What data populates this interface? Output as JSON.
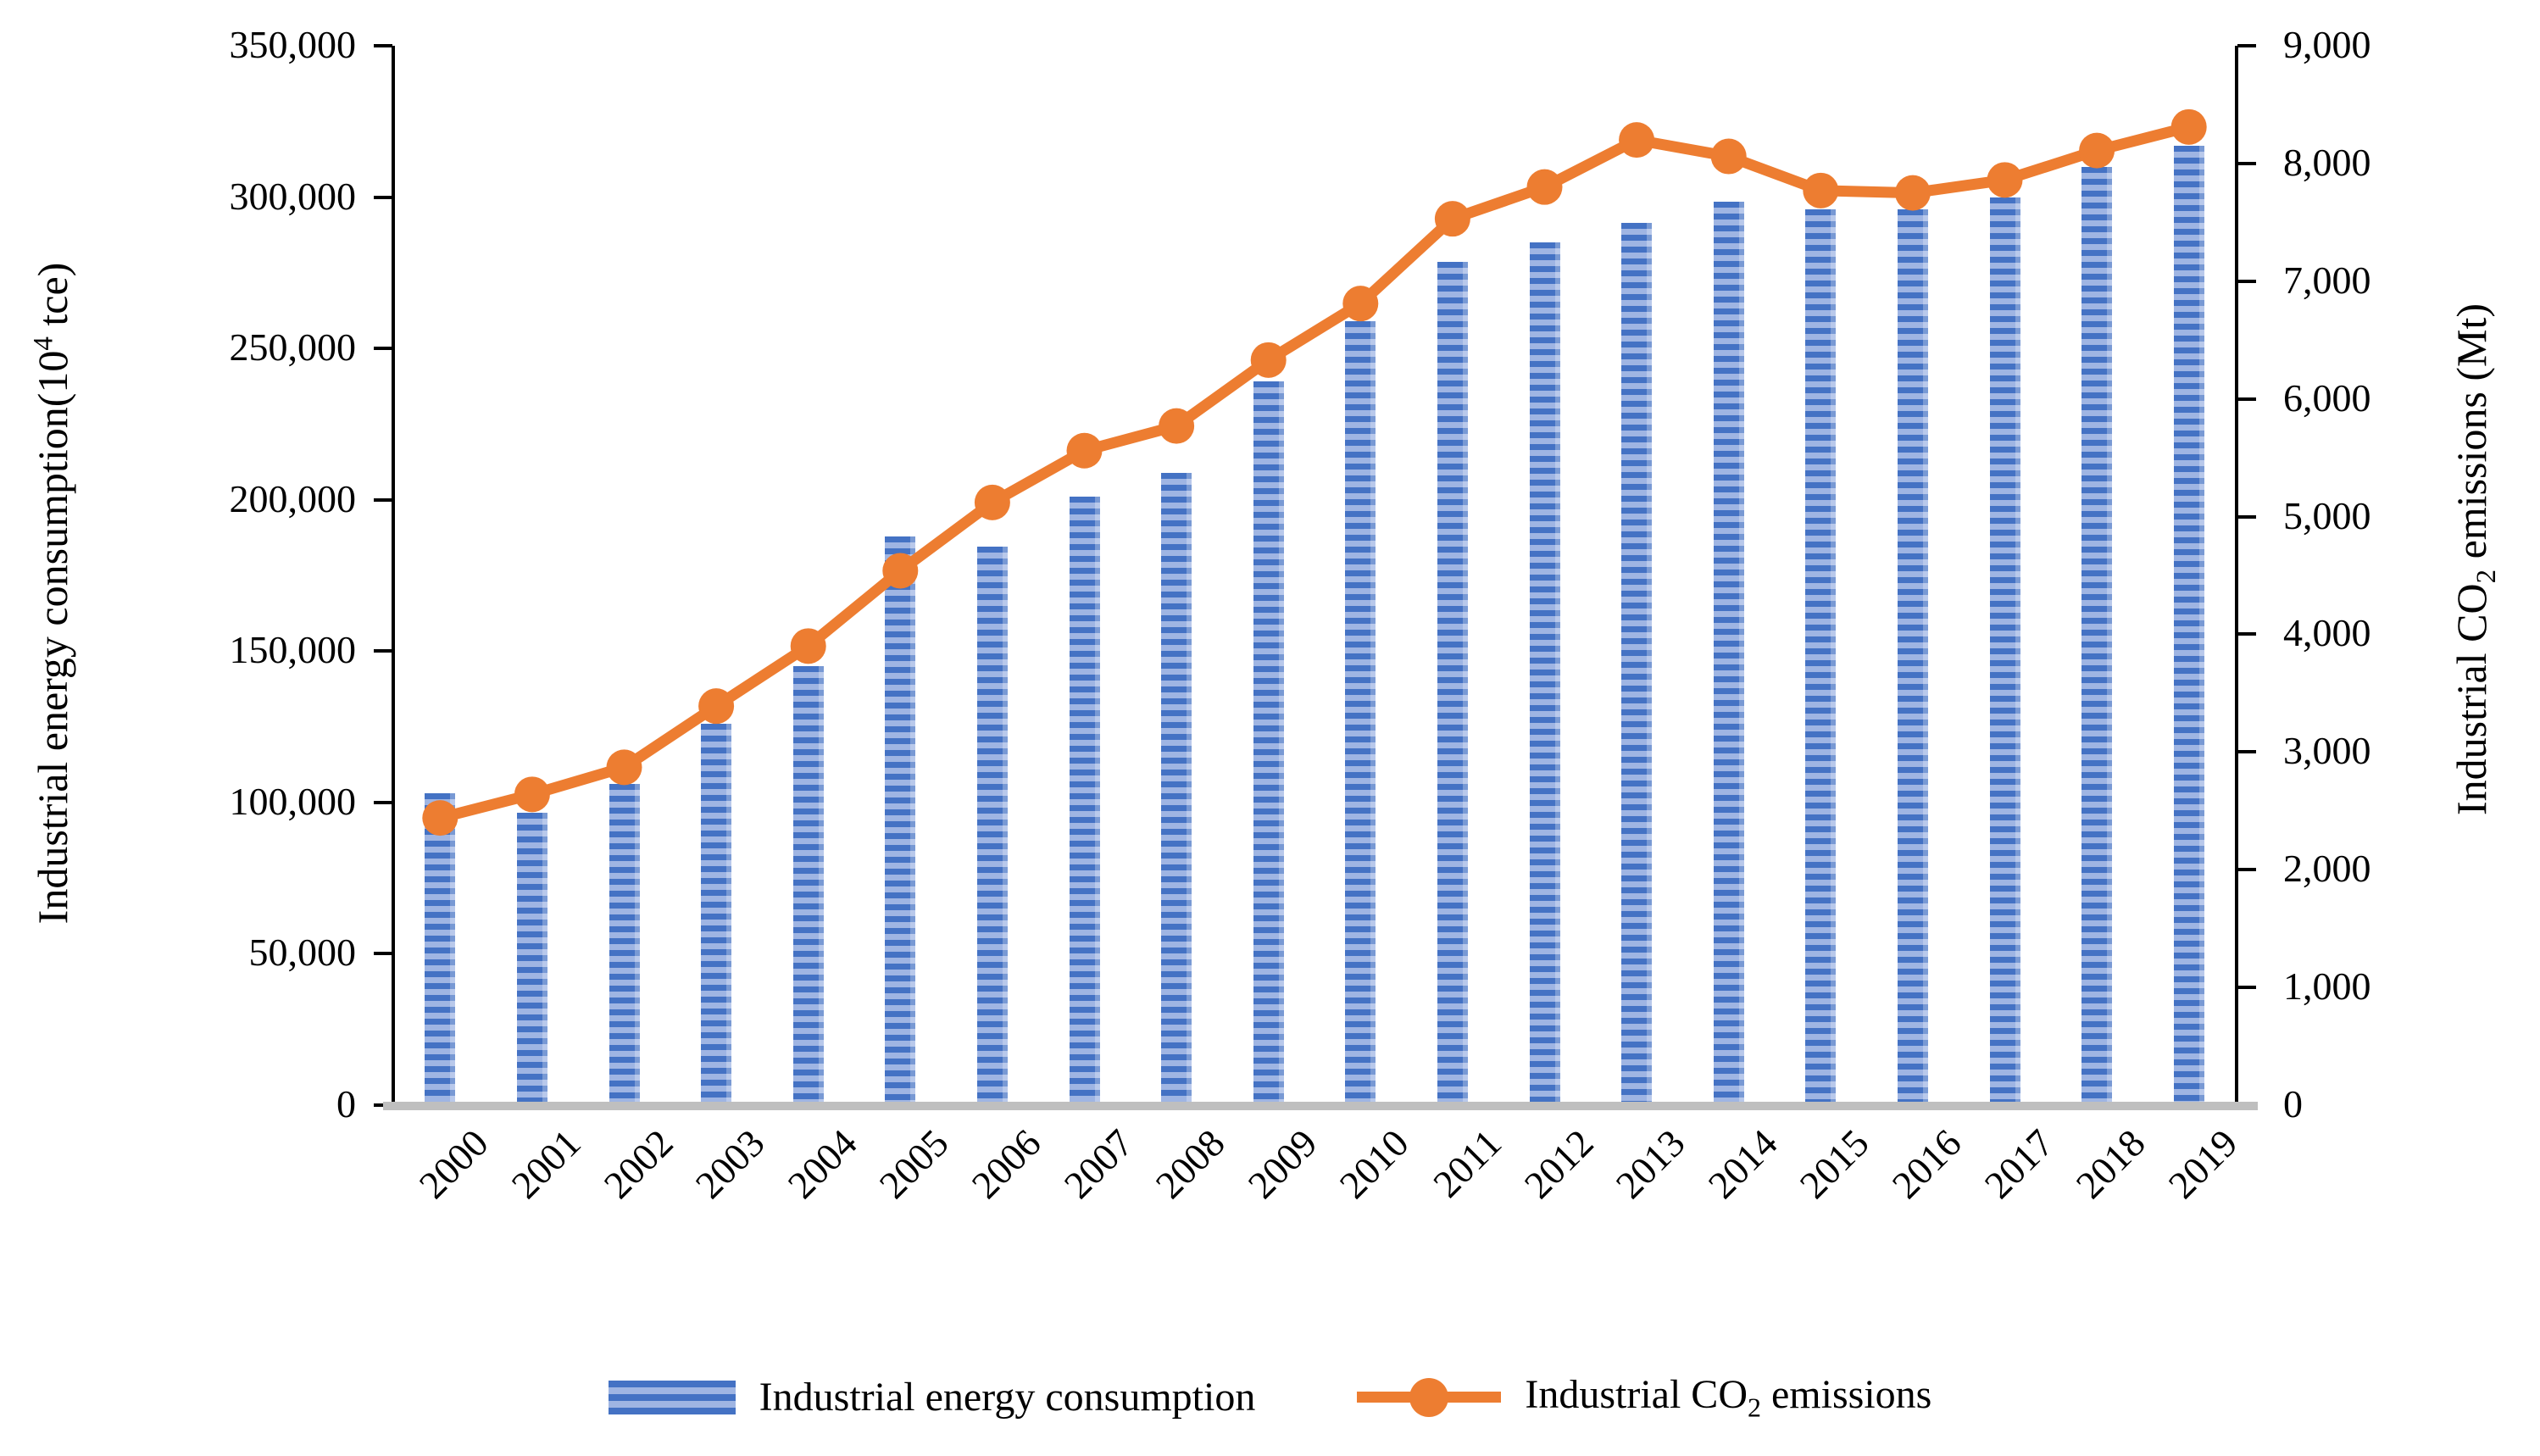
{
  "chart_data": {
    "type": "bar",
    "subtype": "bar+line dual axis combo",
    "title": "",
    "grid": false,
    "legend_position": "bottom",
    "categories": [
      "2000",
      "2001",
      "2002",
      "2003",
      "2004",
      "2005",
      "2006",
      "2007",
      "2008",
      "2009",
      "2010",
      "2011",
      "2012",
      "2013",
      "2014",
      "2015",
      "2016",
      "2017",
      "2018",
      "2019"
    ],
    "series": [
      {
        "name": "Industrial energy consumption",
        "chart": "bar",
        "axis": "left",
        "unit": "10^4 tce",
        "values": [
          103000,
          96500,
          106000,
          126000,
          145000,
          188000,
          184500,
          201000,
          209000,
          239000,
          259000,
          278500,
          285000,
          291500,
          298500,
          296000,
          296000,
          300000,
          310000,
          317000
        ]
      },
      {
        "name": "Industrial CO2 emissions",
        "chart": "line",
        "axis": "right",
        "unit": "Mt",
        "values": [
          2440,
          2640,
          2870,
          3390,
          3900,
          4540,
          5120,
          5560,
          5770,
          6330,
          6810,
          7530,
          7800,
          8200,
          8060,
          7770,
          7750,
          7860,
          8110,
          8310
        ]
      }
    ],
    "left_axis": {
      "title_pre": "Industrial energy consumption(10",
      "title_sup": "4",
      "title_post": " tce)",
      "min": 0,
      "max": 350000,
      "tick_step": 50000,
      "tick_labels": [
        "0",
        "50,000",
        "100,000",
        "150,000",
        "200,000",
        "250,000",
        "300,000",
        "350,000"
      ]
    },
    "right_axis": {
      "title_pre": "Industrial CO",
      "title_sub": "2",
      "title_post": " emissions  (Mt)",
      "min": 0,
      "max": 9000,
      "tick_step": 1000,
      "tick_labels": [
        "0",
        "1,000",
        "2,000",
        "3,000",
        "4,000",
        "5,000",
        "6,000",
        "7,000",
        "8,000",
        "9,000"
      ]
    }
  },
  "legend": {
    "energy_label": "Industrial energy consumption",
    "co2_label_pre": "Industrial CO",
    "co2_label_sub": "2",
    "co2_label_post": "  emissions"
  },
  "colors": {
    "bar_dark": "#4472C4",
    "bar_light": "#9FB5E3",
    "line": "#ED7D31",
    "baseline": "#BFBFBF",
    "axis": "#000000"
  }
}
